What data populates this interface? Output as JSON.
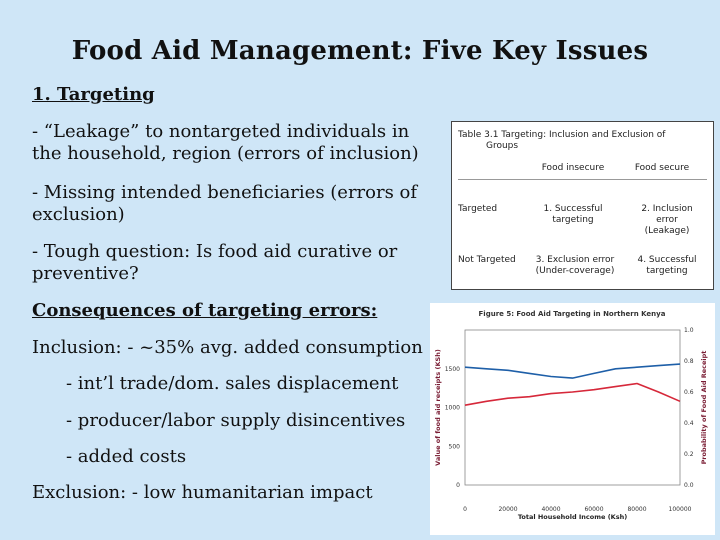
{
  "slide": {
    "title": "Food Aid Management: Five Key Issues",
    "heading": "1. Targeting",
    "bullets": [
      "- “Leakage” to nontargeted individuals in the household, region (errors of inclusion)",
      "- Missing intended beneficiaries (errors of exclusion)",
      "- Tough question: Is food aid curative or preventive?"
    ],
    "consequences_heading": "Consequences of targeting errors:",
    "inclusion_line": "Inclusion: - ~35% avg. added consumption",
    "inclusion_subitems": [
      "- int’l trade/dom. sales displacement",
      "- producer/labor supply disincentives",
      "- added costs"
    ],
    "exclusion_line": "Exclusion: - low humanitarian impact"
  },
  "table": {
    "caption_line1": "Table 3.1   Targeting:  Inclusion and Exclusion of",
    "caption_line2": "Groups",
    "col_headers": [
      "Food insecure",
      "Food secure"
    ],
    "rows": [
      {
        "label": "Targeted",
        "c1_line1": "1. Successful",
        "c1_line2": "targeting",
        "c2_line1": "2. Inclusion",
        "c2_line2": "error",
        "c2_line3": "(Leakage)"
      },
      {
        "label": "Not Targeted",
        "c1_line1": "3. Exclusion error",
        "c1_line2": "(Under-coverage)",
        "c2_line1": "4. Successful",
        "c2_line2": "targeting"
      }
    ]
  },
  "chart_data": {
    "type": "line",
    "title": "Figure 5: Food Aid Targeting in Northern Kenya",
    "xlabel": "Total Household Income (Ksh)",
    "ylabel": "Value of food aid receipts (KSh)",
    "y2label": "Probability of Food Aid Receipt",
    "xlim": [
      0,
      100000
    ],
    "ylim": [
      0,
      2000
    ],
    "y2lim": [
      0,
      1.0
    ],
    "x_ticks": [
      "0",
      "20000",
      "40000",
      "60000",
      "80000",
      "100000"
    ],
    "y_ticks": [
      "0",
      "500",
      "1000",
      "1500"
    ],
    "y2_ticks": [
      "0.0",
      "0.2",
      "0.4",
      "0.6",
      "0.8",
      "1.0"
    ],
    "series": [
      {
        "axis": "y2",
        "color": "#1e5fa8",
        "x": [
          0,
          10000,
          20000,
          30000,
          40000,
          50000,
          60000,
          70000,
          80000,
          90000,
          100000
        ],
        "values": [
          0.76,
          0.75,
          0.74,
          0.72,
          0.7,
          0.69,
          0.72,
          0.75,
          0.76,
          0.77,
          0.78
        ]
      },
      {
        "axis": "y",
        "color": "#d6283a",
        "x": [
          0,
          10000,
          20000,
          30000,
          40000,
          50000,
          60000,
          70000,
          80000,
          90000,
          100000
        ],
        "values": [
          1030,
          1080,
          1120,
          1140,
          1180,
          1200,
          1230,
          1270,
          1310,
          1200,
          1080
        ]
      }
    ],
    "grid": false
  }
}
